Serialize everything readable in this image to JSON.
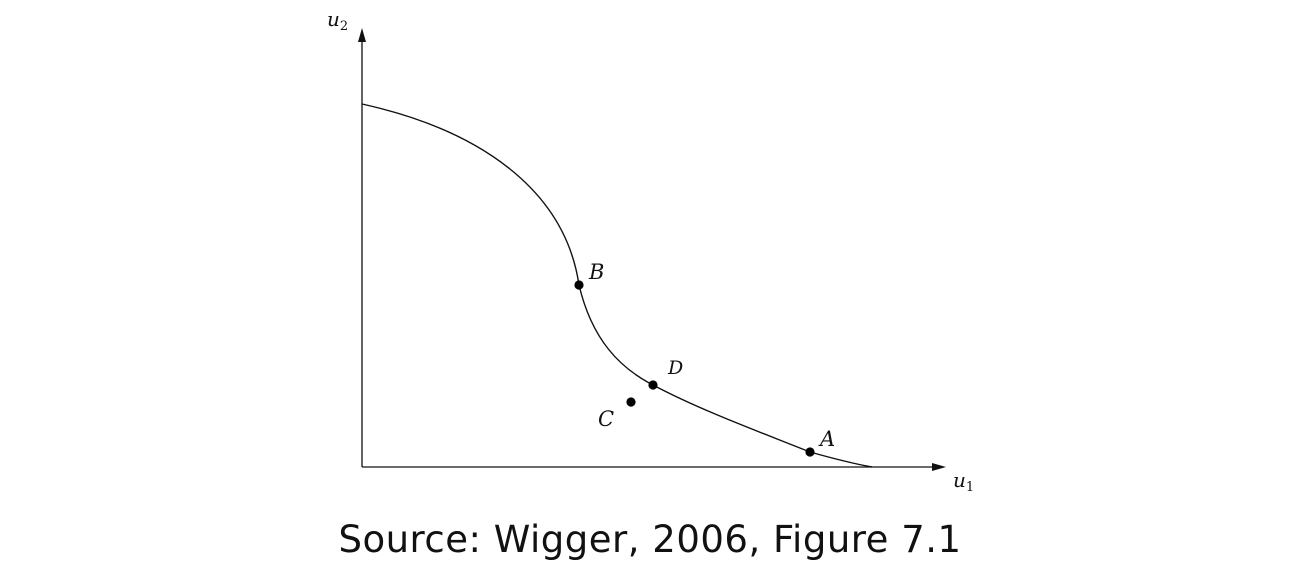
{
  "diagram": {
    "axes": {
      "y_label_base": "u",
      "y_label_sub": "2",
      "x_label_base": "u",
      "x_label_sub": "1"
    },
    "points": {
      "A": "A",
      "B": "B",
      "C": "C",
      "D": "D"
    },
    "colors": {
      "line": "#111111",
      "point": "#000000"
    }
  },
  "caption": "Source: Wigger, 2006, Figure 7.1"
}
